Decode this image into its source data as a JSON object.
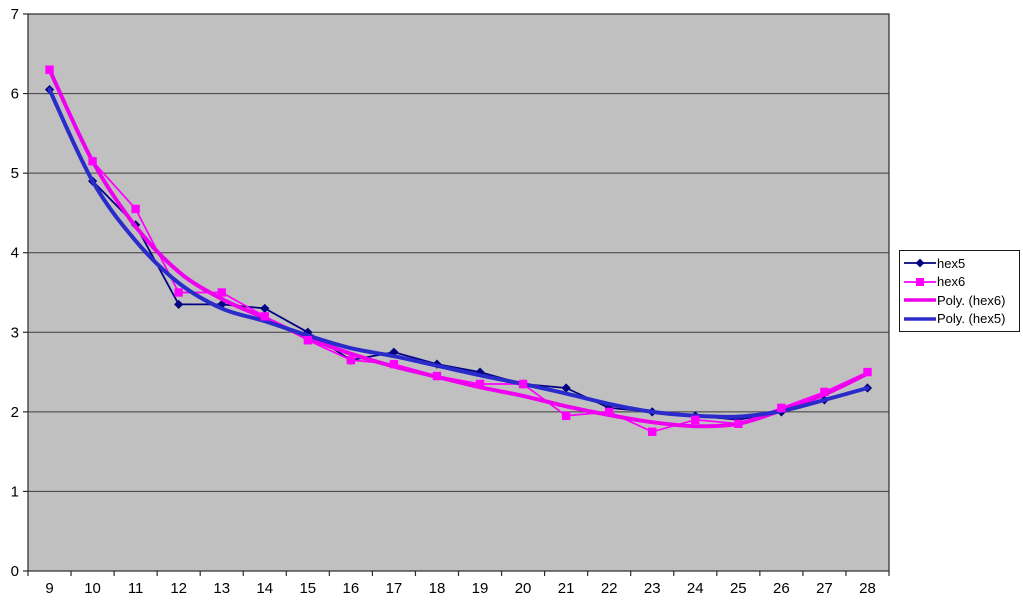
{
  "chart_data": {
    "type": "line",
    "title": "",
    "xlabel": "",
    "ylabel": "",
    "x": [
      9,
      10,
      11,
      12,
      13,
      14,
      15,
      16,
      17,
      18,
      19,
      20,
      21,
      22,
      23,
      24,
      25,
      26,
      27,
      28
    ],
    "ylim": [
      0,
      7
    ],
    "yticks": [
      0,
      1,
      2,
      3,
      4,
      5,
      6,
      7
    ],
    "grid": true,
    "plot_bg": "#C0C0C0",
    "grid_color": "#3C3C3C",
    "axis_color": "#2A2A2A",
    "series": [
      {
        "name": "hex5",
        "kind": "data",
        "color": "#000080",
        "marker": "diamond",
        "line_width": 1.75,
        "values": [
          6.05,
          4.9,
          4.35,
          3.35,
          3.35,
          3.3,
          3.0,
          2.65,
          2.75,
          2.6,
          2.5,
          2.35,
          2.3,
          2.05,
          2.0,
          1.95,
          1.9,
          2.0,
          2.15,
          2.3
        ]
      },
      {
        "name": "hex6",
        "kind": "data",
        "color": "#FF00FF",
        "marker": "square",
        "line_width": 1.75,
        "values": [
          6.3,
          5.15,
          4.55,
          3.5,
          3.5,
          3.2,
          2.9,
          2.65,
          2.6,
          2.45,
          2.35,
          2.35,
          1.95,
          2.0,
          1.75,
          1.9,
          1.85,
          2.05,
          2.25,
          2.5
        ]
      },
      {
        "name": "Poly. (hex6)",
        "kind": "trendline",
        "color": "#EE00EE",
        "marker": "none",
        "line_width": 4,
        "values": [
          6.3,
          5.15,
          4.33,
          3.76,
          3.42,
          3.18,
          2.93,
          2.73,
          2.57,
          2.44,
          2.31,
          2.2,
          2.07,
          1.96,
          1.87,
          1.82,
          1.85,
          2.02,
          2.22,
          2.48
        ]
      },
      {
        "name": "Poly. (hex5)",
        "kind": "trendline",
        "color": "#2B2BCC",
        "marker": "none",
        "line_width": 4,
        "values": [
          6.05,
          4.9,
          4.15,
          3.62,
          3.3,
          3.14,
          2.96,
          2.8,
          2.7,
          2.58,
          2.46,
          2.35,
          2.23,
          2.1,
          2.0,
          1.95,
          1.94,
          2.01,
          2.15,
          2.3
        ]
      }
    ],
    "legend": {
      "position": "right",
      "items": [
        "hex5",
        "hex6",
        "Poly. (hex6)",
        "Poly. (hex5)"
      ]
    }
  }
}
